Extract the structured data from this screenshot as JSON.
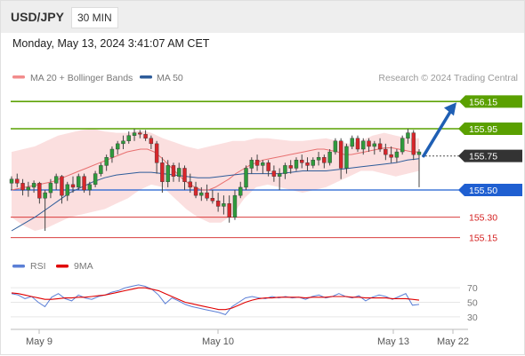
{
  "header": {
    "symbol": "USD/JPY",
    "timeframe": "30 MIN",
    "datetime": "Monday, May 13, 2024 3:41:07 AM CET"
  },
  "legend": {
    "bollinger_label": "MA 20 + Bollinger Bands",
    "ma50_label": "MA 50",
    "credit": "Research © 2024 Trading Central",
    "colors": {
      "bollinger": "#f28c8c",
      "ma50": "#2e5c9a"
    }
  },
  "rsi_legend": {
    "rsi_label": "RSI",
    "ma_label": "9MA",
    "colors": {
      "rsi": "#5b7fd6",
      "ma": "#e00000"
    }
  },
  "chart_data": {
    "type": "candlestick",
    "price_range": [
      155.05,
      156.25
    ],
    "x_ticks": [
      "May 9",
      "May 10",
      "May 13",
      "May 22"
    ],
    "levels": [
      {
        "label": "156.15",
        "value": 156.15,
        "kind": "target",
        "color": "#5aa000"
      },
      {
        "label": "155.95",
        "value": 155.95,
        "kind": "resistance",
        "color": "#5aa000"
      },
      {
        "label": "155.75",
        "value": 155.75,
        "kind": "current",
        "color": "#333333"
      },
      {
        "label": "155.50",
        "value": 155.5,
        "kind": "pivot",
        "color": "#1f5fd1"
      },
      {
        "label": "155.30",
        "value": 155.3,
        "kind": "support",
        "color": "#d42020"
      },
      {
        "label": "155.15",
        "value": 155.15,
        "kind": "support",
        "color": "#d42020"
      }
    ],
    "forecast_arrow": {
      "from": 155.75,
      "to": 156.15,
      "color": "#1f5fb4"
    },
    "candles": [
      [
        155.55,
        155.6,
        155.5,
        155.58
      ],
      [
        155.58,
        155.62,
        155.52,
        155.55
      ],
      [
        155.55,
        155.58,
        155.46,
        155.5
      ],
      [
        155.5,
        155.56,
        155.45,
        155.52
      ],
      [
        155.52,
        155.57,
        155.48,
        155.55
      ],
      [
        155.55,
        155.56,
        155.4,
        155.44
      ],
      [
        155.44,
        155.5,
        155.2,
        155.48
      ],
      [
        155.48,
        155.58,
        155.44,
        155.55
      ],
      [
        155.55,
        155.62,
        155.5,
        155.6
      ],
      [
        155.6,
        155.61,
        155.4,
        155.46
      ],
      [
        155.46,
        155.56,
        155.42,
        155.54
      ],
      [
        155.54,
        155.6,
        155.48,
        155.52
      ],
      [
        155.52,
        155.62,
        155.5,
        155.6
      ],
      [
        155.6,
        155.62,
        155.48,
        155.5
      ],
      [
        155.5,
        155.56,
        155.46,
        155.54
      ],
      [
        155.54,
        155.64,
        155.52,
        155.62
      ],
      [
        155.62,
        155.7,
        155.6,
        155.68
      ],
      [
        155.68,
        155.76,
        155.64,
        155.74
      ],
      [
        155.74,
        155.82,
        155.7,
        155.8
      ],
      [
        155.8,
        155.86,
        155.76,
        155.84
      ],
      [
        155.84,
        155.9,
        155.8,
        155.86
      ],
      [
        155.86,
        155.93,
        155.84,
        155.9
      ],
      [
        155.9,
        155.95,
        155.86,
        155.92
      ],
      [
        155.92,
        155.94,
        155.88,
        155.91
      ],
      [
        155.91,
        155.94,
        155.86,
        155.88
      ],
      [
        155.88,
        155.9,
        155.8,
        155.84
      ],
      [
        155.84,
        155.86,
        155.62,
        155.7
      ],
      [
        155.7,
        155.74,
        155.48,
        155.56
      ],
      [
        155.56,
        155.72,
        155.52,
        155.68
      ],
      [
        155.68,
        155.7,
        155.56,
        155.6
      ],
      [
        155.6,
        155.7,
        155.56,
        155.66
      ],
      [
        155.66,
        155.68,
        155.5,
        155.56
      ],
      [
        155.56,
        155.62,
        155.48,
        155.52
      ],
      [
        155.52,
        155.56,
        155.44,
        155.46
      ],
      [
        155.46,
        155.52,
        155.42,
        155.48
      ],
      [
        155.48,
        155.54,
        155.42,
        155.44
      ],
      [
        155.44,
        155.5,
        155.4,
        155.42
      ],
      [
        155.42,
        155.48,
        155.34,
        155.38
      ],
      [
        155.38,
        155.46,
        155.32,
        155.4
      ],
      [
        155.4,
        155.46,
        155.26,
        155.3
      ],
      [
        155.3,
        155.5,
        155.28,
        155.46
      ],
      [
        155.46,
        155.56,
        155.44,
        155.52
      ],
      [
        155.52,
        155.68,
        155.5,
        155.66
      ],
      [
        155.66,
        155.74,
        155.62,
        155.72
      ],
      [
        155.72,
        155.76,
        155.64,
        155.68
      ],
      [
        155.68,
        155.72,
        155.62,
        155.7
      ],
      [
        155.7,
        155.72,
        155.6,
        155.64
      ],
      [
        155.64,
        155.68,
        155.56,
        155.6
      ],
      [
        155.6,
        155.66,
        155.5,
        155.62
      ],
      [
        155.62,
        155.7,
        155.58,
        155.68
      ],
      [
        155.68,
        155.72,
        155.62,
        155.66
      ],
      [
        155.66,
        155.74,
        155.64,
        155.72
      ],
      [
        155.72,
        155.76,
        155.66,
        155.7
      ],
      [
        155.7,
        155.74,
        155.64,
        155.68
      ],
      [
        155.68,
        155.74,
        155.66,
        155.72
      ],
      [
        155.72,
        155.78,
        155.68,
        155.74
      ],
      [
        155.74,
        155.76,
        155.66,
        155.7
      ],
      [
        155.7,
        155.8,
        155.68,
        155.78
      ],
      [
        155.78,
        155.88,
        155.76,
        155.86
      ],
      [
        155.86,
        155.88,
        155.58,
        155.66
      ],
      [
        155.66,
        155.84,
        155.62,
        155.82
      ],
      [
        155.82,
        155.9,
        155.8,
        155.88
      ],
      [
        155.88,
        155.9,
        155.78,
        155.8
      ],
      [
        155.8,
        155.88,
        155.76,
        155.86
      ],
      [
        155.86,
        155.88,
        155.78,
        155.82
      ],
      [
        155.82,
        155.86,
        155.76,
        155.84
      ],
      [
        155.84,
        155.88,
        155.78,
        155.8
      ],
      [
        155.8,
        155.84,
        155.72,
        155.76
      ],
      [
        155.76,
        155.82,
        155.7,
        155.74
      ],
      [
        155.74,
        155.8,
        155.7,
        155.78
      ],
      [
        155.78,
        155.9,
        155.76,
        155.88
      ],
      [
        155.88,
        155.95,
        155.84,
        155.92
      ],
      [
        155.92,
        155.94,
        155.72,
        155.76
      ],
      [
        155.76,
        155.8,
        155.52,
        155.78
      ]
    ],
    "ma20": [
      155.5,
      155.51,
      155.52,
      155.53,
      155.54,
      155.55,
      155.56,
      155.58,
      155.6,
      155.62,
      155.64,
      155.66,
      155.68,
      155.7,
      155.72,
      155.74,
      155.76,
      155.78,
      155.79,
      155.8,
      155.8,
      155.78,
      155.74,
      155.69,
      155.64,
      155.59,
      155.55,
      155.52,
      155.5,
      155.5,
      155.52,
      155.55,
      155.58,
      155.62,
      155.65,
      155.68,
      155.7,
      155.72,
      155.73,
      155.74,
      155.75,
      155.76,
      155.77,
      155.78,
      155.79,
      155.8,
      155.8,
      155.79,
      155.78,
      155.76,
      155.76,
      155.77,
      155.78,
      155.79,
      155.8,
      155.81,
      155.81,
      155.8,
      155.79,
      155.78,
      155.78
    ],
    "bb_upper": [
      155.78,
      155.8,
      155.82,
      155.86,
      155.9,
      155.92,
      155.94,
      155.95,
      155.93,
      155.92,
      155.92,
      155.94,
      155.92,
      155.88,
      155.85,
      155.82,
      155.8,
      155.82,
      155.84,
      155.86,
      155.86,
      155.88,
      155.88,
      155.87,
      155.86,
      155.86,
      155.87,
      155.88,
      155.86,
      155.84,
      155.86,
      155.9,
      155.92,
      155.9,
      155.88,
      155.88
    ],
    "bb_lower": [
      155.3,
      155.24,
      155.2,
      155.22,
      155.26,
      155.3,
      155.32,
      155.34,
      155.36,
      155.4,
      155.44,
      155.5,
      155.54,
      155.52,
      155.44,
      155.36,
      155.3,
      155.26,
      155.26,
      155.32,
      155.44,
      155.52,
      155.54,
      155.52,
      155.5,
      155.48,
      155.5,
      155.52,
      155.56,
      155.6,
      155.64,
      155.64,
      155.62,
      155.6,
      155.62,
      155.64
    ],
    "ma50": [
      155.2,
      155.25,
      155.3,
      155.36,
      155.42,
      155.48,
      155.52,
      155.56,
      155.59,
      155.61,
      155.62,
      155.63,
      155.63,
      155.62,
      155.61,
      155.6,
      155.59,
      155.59,
      155.6,
      155.61,
      155.62,
      155.62,
      155.62,
      155.62,
      155.63,
      155.64,
      155.64,
      155.64,
      155.65,
      155.66,
      155.67,
      155.68,
      155.69,
      155.7,
      155.72,
      155.73
    ],
    "rsi_axis": {
      "ticks": [
        70,
        50,
        30
      ]
    },
    "rsi": [
      62,
      60,
      55,
      58,
      50,
      44,
      57,
      62,
      55,
      52,
      60,
      56,
      54,
      58,
      60,
      64,
      66,
      70,
      72,
      74,
      72,
      68,
      60,
      48,
      56,
      52,
      47,
      44,
      42,
      40,
      38,
      36,
      33,
      44,
      50,
      56,
      58,
      56,
      55,
      58,
      56,
      58,
      56,
      57,
      54,
      58,
      60,
      56,
      58,
      62,
      58,
      56,
      59,
      52,
      57,
      60,
      58,
      54,
      58,
      62,
      46,
      47
    ],
    "rsi_ma": [
      63,
      62,
      60,
      58,
      56,
      54,
      54,
      55,
      56,
      56,
      57,
      57,
      58,
      59,
      60,
      62,
      64,
      66,
      68,
      70,
      70,
      68,
      66,
      62,
      58,
      54,
      50,
      48,
      46,
      44,
      42,
      40,
      40,
      42,
      46,
      50,
      53,
      55,
      56,
      56,
      57,
      57,
      57,
      57,
      56,
      57,
      57,
      57,
      58,
      58,
      58,
      57,
      57,
      56,
      56,
      56,
      56,
      55,
      55,
      55,
      54,
      53
    ]
  }
}
